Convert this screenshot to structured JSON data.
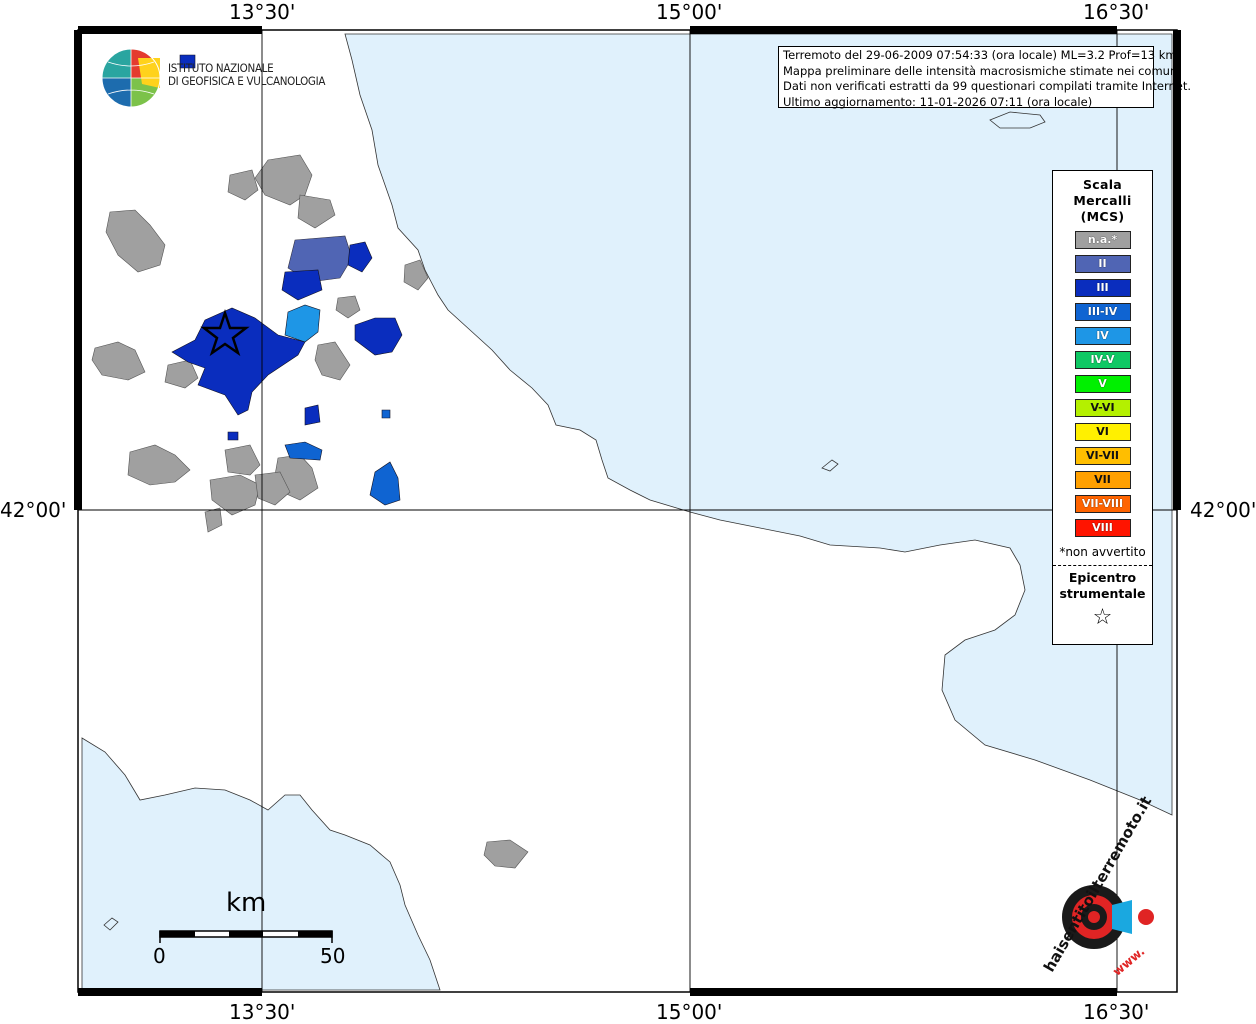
{
  "axes": {
    "top": [
      "13°30'",
      "15°00'",
      "16°30'"
    ],
    "bottom": [
      "13°30'",
      "15°00'",
      "16°30'"
    ],
    "left": [
      "42°00'"
    ],
    "right": [
      "42°00'"
    ]
  },
  "header": {
    "lines": [
      "Terremoto del 29-06-2009 07:54:33 (ora locale) ML=3.2 Prof=13 km",
      "Mappa preliminare delle intensità macrosismiche stimate nei comuni",
      "Dati non verificati estratti da 99 questionari compilati tramite Internet.",
      "Ultimo aggiornamento: 11-01-2026 07:11 (ora locale)"
    ]
  },
  "institute": {
    "line1": "ISTITUTO NAZIONALE",
    "line2": "DI GEOFISICA E VULCANOLOGIA"
  },
  "legend": {
    "title": [
      "Scala",
      "Mercalli",
      "(MCS)"
    ],
    "items": [
      {
        "label": "n.a.*",
        "color": "#a0a0a0"
      },
      {
        "label": "II",
        "color": "#5065b4"
      },
      {
        "label": "III",
        "color": "#0a2dbe"
      },
      {
        "label": "III-IV",
        "color": "#0f64d2"
      },
      {
        "label": "IV",
        "color": "#1e96e6"
      },
      {
        "label": "IV-V",
        "color": "#0fc864"
      },
      {
        "label": "V",
        "color": "#00f000"
      },
      {
        "label": "V-VI",
        "color": "#b4f000"
      },
      {
        "label": "VI",
        "color": "#fff000"
      },
      {
        "label": "VI-VII",
        "color": "#ffbe00"
      },
      {
        "label": "VII",
        "color": "#ffa000"
      },
      {
        "label": "VII-VIII",
        "color": "#ff6400"
      },
      {
        "label": "VIII",
        "color": "#ff1400"
      }
    ],
    "note": "*non avvertito",
    "epicenter_title": [
      "Epicentro",
      "strumentale"
    ],
    "epicenter_symbol": "☆"
  },
  "scale_bar": {
    "unit": "km",
    "min": "0",
    "max": "50"
  },
  "watermark": {
    "text": "haisentitoilterremoto.it",
    "prefix": "www."
  },
  "colors": {
    "sea": "#e0f1fc",
    "land": "#ffffff",
    "grid": "#000000"
  }
}
